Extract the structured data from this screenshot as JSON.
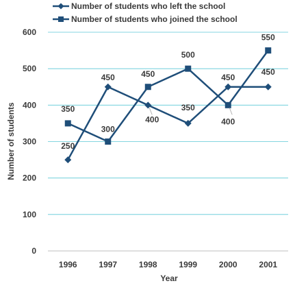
{
  "chart_data": {
    "type": "line",
    "title": "",
    "xlabel": "Year",
    "ylabel": "Number of students",
    "x": [
      "1996",
      "1997",
      "1998",
      "1999",
      "2000",
      "2001"
    ],
    "ylim": [
      0,
      600
    ],
    "yticks": [
      0,
      100,
      200,
      300,
      400,
      500,
      600
    ],
    "grid": true,
    "legend_position": "top",
    "series": [
      {
        "name": "Number of students who left the school",
        "marker": "diamond",
        "color": "#1f4e79",
        "values": [
          250,
          450,
          400,
          350,
          450,
          450
        ],
        "labels": [
          "250",
          "450",
          "400",
          "350",
          "450",
          "450"
        ]
      },
      {
        "name": "Number of students who joined the school",
        "marker": "square",
        "color": "#1f4e79",
        "values": [
          350,
          300,
          450,
          500,
          400,
          550
        ],
        "labels": [
          "350",
          "300",
          "450",
          "500",
          "400",
          "550"
        ]
      }
    ]
  },
  "colors": {
    "line": "#1f4e79",
    "grid": "#5bc8d6",
    "text": "#3a3a3a"
  }
}
